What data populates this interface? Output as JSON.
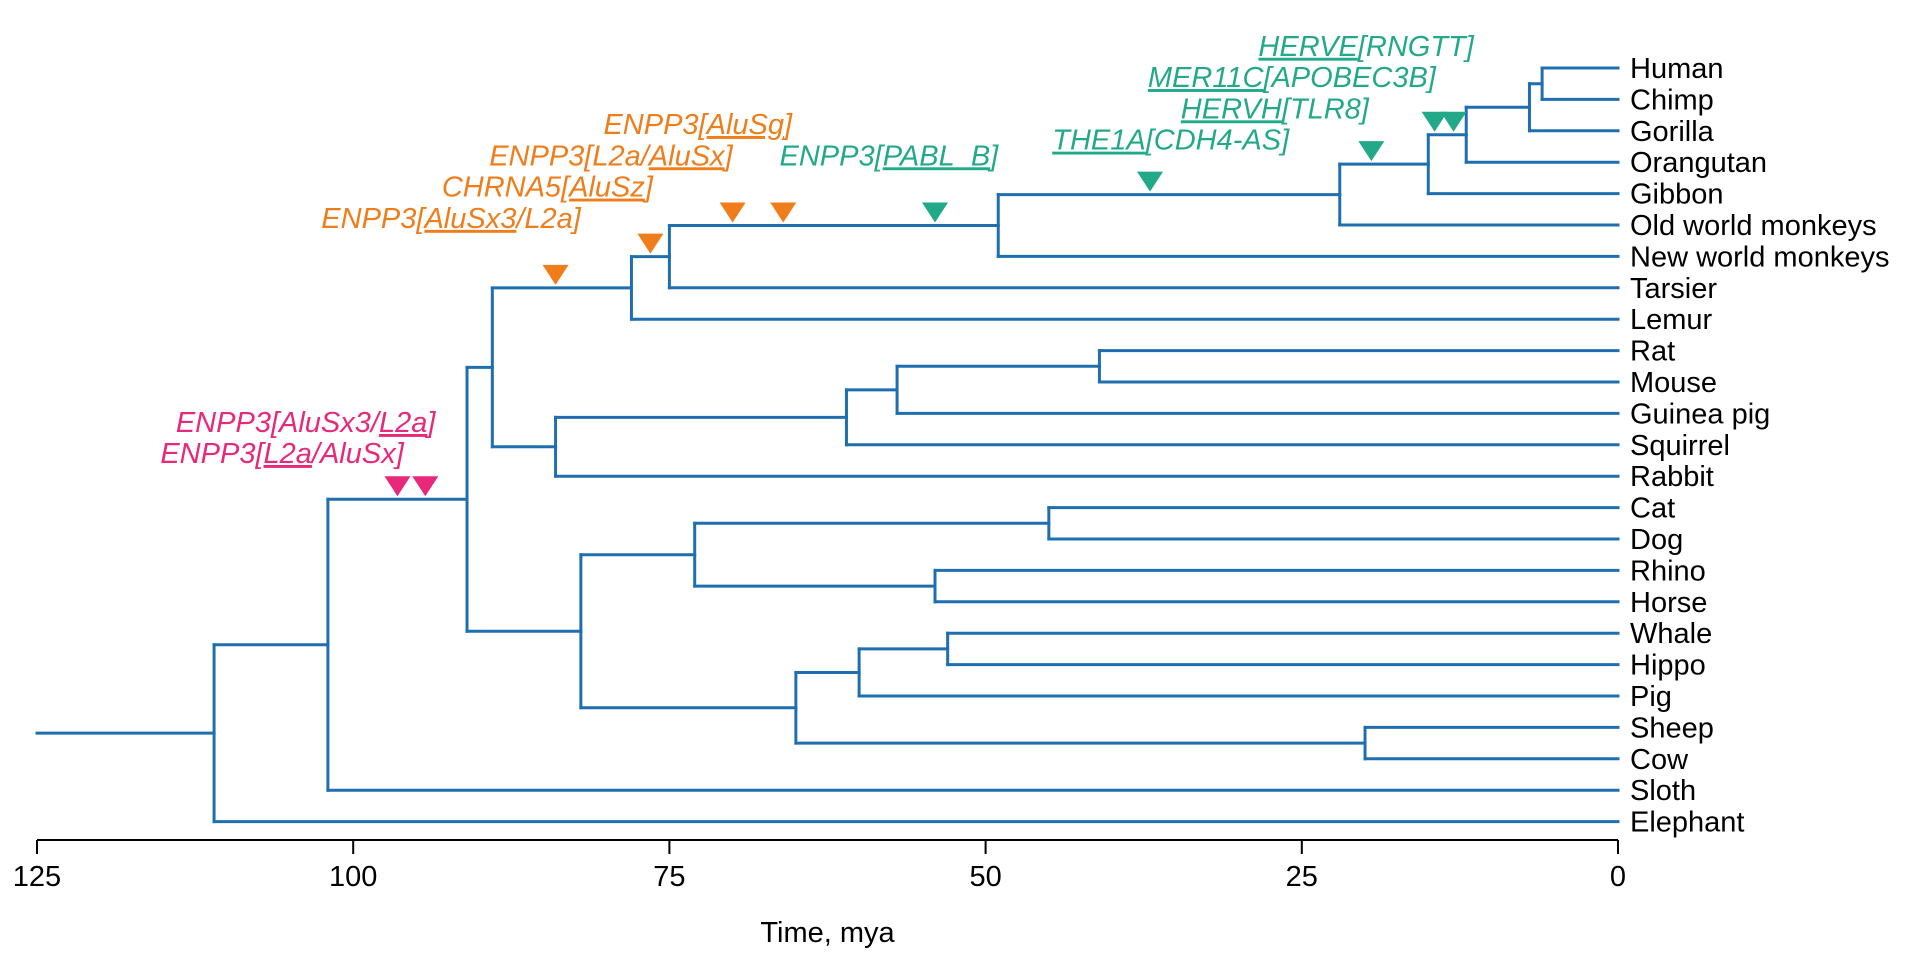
{
  "diagram": {
    "axis": {
      "title": "Time, mya",
      "ticks": [
        125,
        100,
        75,
        50,
        25,
        0
      ],
      "range": [
        125,
        0
      ]
    },
    "colors": {
      "tree": "#1f6fb0",
      "pink": "#e8287a",
      "orange": "#ef7d1a",
      "green": "#22a98a",
      "axis": "#000000"
    },
    "taxa": [
      "Human",
      "Chimp",
      "Gorilla",
      "Orangutan",
      "Gibbon",
      "Old world monkeys",
      "New world monkeys",
      "Tarsier",
      "Lemur",
      "Rat",
      "Mouse",
      "Guinea pig",
      "Squirrel",
      "Rabbit",
      "Cat",
      "Dog",
      "Rhino",
      "Horse",
      "Whale",
      "Hippo",
      "Pig",
      "Sheep",
      "Cow",
      "Sloth",
      "Elephant"
    ],
    "nodes": [
      {
        "id": "root",
        "age": 125,
        "children": [
          "n_afro"
        ]
      },
      {
        "id": "n_afro",
        "age": 111,
        "children": [
          "n_bor",
          "Elephant"
        ]
      },
      {
        "id": "n_bor",
        "age": 102,
        "children": [
          "n_bor2",
          "Sloth"
        ]
      },
      {
        "id": "n_bor2",
        "age": 91,
        "children": [
          "n_euarch",
          "n_laur"
        ]
      },
      {
        "id": "n_euarch",
        "age": 89,
        "children": [
          "n_prim",
          "n_glires"
        ]
      },
      {
        "id": "n_prim",
        "age": 78,
        "children": [
          "n_tarsanth",
          "Lemur"
        ]
      },
      {
        "id": "n_tarsanth",
        "age": 75,
        "children": [
          "n_anth",
          "Tarsier"
        ]
      },
      {
        "id": "n_anth",
        "age": 49,
        "children": [
          "n_catar",
          "New world monkeys"
        ]
      },
      {
        "id": "n_catar",
        "age": 22,
        "children": [
          "n_ape",
          "Old world monkeys"
        ]
      },
      {
        "id": "n_ape",
        "age": 15,
        "children": [
          "n_great",
          "Gibbon"
        ]
      },
      {
        "id": "n_great",
        "age": 12,
        "children": [
          "n_hom",
          "Orangutan"
        ]
      },
      {
        "id": "n_hom",
        "age": 7,
        "children": [
          "n_hc",
          "Gorilla"
        ]
      },
      {
        "id": "n_hc",
        "age": 6,
        "children": [
          "Human",
          "Chimp"
        ]
      },
      {
        "id": "n_glires",
        "age": 84,
        "children": [
          "n_rod",
          "Rabbit"
        ]
      },
      {
        "id": "n_rod",
        "age": 61,
        "children": [
          "n_rod2",
          "Squirrel"
        ]
      },
      {
        "id": "n_rod2",
        "age": 57,
        "children": [
          "n_murid",
          "Guinea pig"
        ]
      },
      {
        "id": "n_murid",
        "age": 41,
        "children": [
          "Rat",
          "Mouse"
        ]
      },
      {
        "id": "n_laur",
        "age": 82,
        "children": [
          "n_fp",
          "n_cet"
        ]
      },
      {
        "id": "n_fp",
        "age": 73,
        "children": [
          "n_carn",
          "n_peri"
        ]
      },
      {
        "id": "n_carn",
        "age": 45,
        "children": [
          "Cat",
          "Dog"
        ]
      },
      {
        "id": "n_peri",
        "age": 54,
        "children": [
          "Rhino",
          "Horse"
        ]
      },
      {
        "id": "n_cet",
        "age": 65,
        "children": [
          "n_whp",
          "n_rum"
        ]
      },
      {
        "id": "n_whp",
        "age": 60,
        "children": [
          "n_wh",
          "Pig"
        ]
      },
      {
        "id": "n_wh",
        "age": 53,
        "children": [
          "Whale",
          "Hippo"
        ]
      },
      {
        "id": "n_rum",
        "age": 20,
        "children": [
          "Sheep",
          "Cow"
        ]
      }
    ],
    "markers": [
      {
        "age": 96.5,
        "child": "n_bor2",
        "color": "pink"
      },
      {
        "age": 94.3,
        "child": "n_bor2",
        "color": "pink"
      },
      {
        "age": 84,
        "child": "n_prim",
        "color": "orange"
      },
      {
        "age": 76.5,
        "child": "n_tarsanth",
        "color": "orange"
      },
      {
        "age": 70,
        "child": "n_anth",
        "color": "orange"
      },
      {
        "age": 66,
        "child": "n_anth",
        "color": "orange"
      },
      {
        "age": 54,
        "child": "n_anth",
        "color": "green"
      },
      {
        "age": 37,
        "child": "n_catar",
        "color": "green"
      },
      {
        "age": 19.5,
        "child": "n_ape",
        "color": "green"
      },
      {
        "age": 14.5,
        "child": "n_great",
        "color": "green"
      },
      {
        "age": 13,
        "child": "n_great",
        "color": "green"
      }
    ],
    "annotations": [
      {
        "color": "pink",
        "anchor": "end",
        "at_age": 93.5,
        "line": 0,
        "parts": [
          {
            "t": "ENPP3[AluSx3/"
          },
          {
            "t": "L2a",
            "u": true
          },
          {
            "t": "]"
          }
        ]
      },
      {
        "color": "pink",
        "anchor": "end",
        "at_age": 96.0,
        "line": 1,
        "parts": [
          {
            "t": "ENPP3["
          },
          {
            "t": "L2a",
            "u": true
          },
          {
            "t": "/AluSx]"
          }
        ]
      },
      {
        "color": "orange",
        "anchor": "end",
        "at_age": 65.3,
        "line": 2,
        "parts": [
          {
            "t": "ENPP3["
          },
          {
            "t": "AluSg",
            "u": true
          },
          {
            "t": "]"
          }
        ]
      },
      {
        "color": "orange",
        "anchor": "end",
        "at_age": 70.0,
        "line": 3,
        "parts": [
          {
            "t": "ENPP3[L2a/"
          },
          {
            "t": "AluSx",
            "u": true
          },
          {
            "t": "]"
          }
        ]
      },
      {
        "color": "orange",
        "anchor": "end",
        "at_age": 76.3,
        "line": 4,
        "parts": [
          {
            "t": "CHRNA5["
          },
          {
            "t": "AluSz",
            "u": true
          },
          {
            "t": "]"
          }
        ]
      },
      {
        "color": "orange",
        "anchor": "end",
        "at_age": 82.0,
        "line": 5,
        "parts": [
          {
            "t": "ENPP3["
          },
          {
            "t": "AluSx3",
            "u": true
          },
          {
            "t": "/L2a]"
          }
        ]
      },
      {
        "color": "green",
        "anchor": "end",
        "at_age": 49.0,
        "line": 3,
        "parts": [
          {
            "t": "ENPP3["
          },
          {
            "t": "PABL_B",
            "u": true
          },
          {
            "t": "]"
          }
        ]
      },
      {
        "color": "green",
        "anchor": "end",
        "at_age": 26.0,
        "line": 2.5,
        "parts": [
          {
            "t": "THE1A",
            "u": true
          },
          {
            "t": "[CDH4-AS]"
          }
        ]
      },
      {
        "color": "green",
        "anchor": "end",
        "at_age": 19.7,
        "line": 1.5,
        "parts": [
          {
            "t": "HERVH",
            "u": true
          },
          {
            "t": "[TLR8]"
          }
        ]
      },
      {
        "color": "green",
        "anchor": "end",
        "at_age": 14.4,
        "line": 0.5,
        "parts": [
          {
            "t": "MER11C",
            "u": true
          },
          {
            "t": "[APOBEC3B]"
          }
        ]
      },
      {
        "color": "green",
        "anchor": "end",
        "at_age": 11.4,
        "line": -0.5,
        "parts": [
          {
            "t": "HERVE",
            "u": true
          },
          {
            "t": "[RNGTT]"
          }
        ]
      }
    ]
  }
}
